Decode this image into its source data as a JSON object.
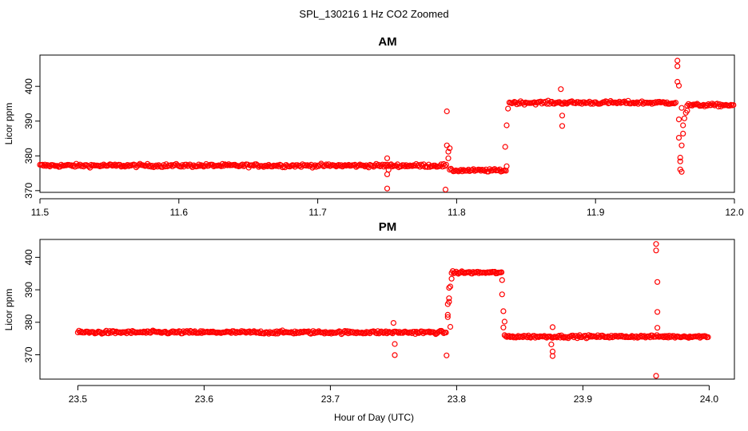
{
  "chart_data": {
    "type": "scatter",
    "title": "SPL_130216  1 Hz CO2 Zoomed",
    "xlabel": "Hour of Day (UTC)",
    "marker_color": "#ff0000",
    "panels": [
      {
        "title": "AM",
        "ylabel": "Licor ppm",
        "xlim": [
          11.5,
          12.0
        ],
        "ylim": [
          369.5,
          409
        ],
        "xticks": [
          11.5,
          11.6,
          11.7,
          11.8,
          11.9,
          12.0
        ],
        "xtick_labels": [
          "11.5",
          "11.6",
          "11.7",
          "11.8",
          "11.9",
          "12.0"
        ],
        "yticks": [
          370,
          380,
          390,
          400
        ],
        "ytick_labels": [
          "370",
          "380",
          "390",
          "400"
        ],
        "segments": [
          {
            "x_start": 11.5,
            "x_end": 11.793,
            "level": 377.2,
            "noise": 0.8
          },
          {
            "x_start": 11.795,
            "x_end": 11.836,
            "level": 375.8,
            "noise": 0.7
          },
          {
            "x_start": 11.838,
            "x_end": 11.958,
            "level": 395.3,
            "noise": 0.8
          },
          {
            "x_start": 11.966,
            "x_end": 12.0,
            "level": 394.6,
            "noise": 0.7
          }
        ],
        "points": [
          [
            11.75,
            370.6
          ],
          [
            11.75,
            374.7
          ],
          [
            11.75,
            379.3
          ],
          [
            11.751,
            376.0
          ],
          [
            11.792,
            370.3
          ],
          [
            11.793,
            392.8
          ],
          [
            11.793,
            383.0
          ],
          [
            11.794,
            381.2
          ],
          [
            11.794,
            379.3
          ],
          [
            11.795,
            382.2
          ],
          [
            11.835,
            382.6
          ],
          [
            11.836,
            388.8
          ],
          [
            11.836,
            377.0
          ],
          [
            11.837,
            393.6
          ],
          [
            11.875,
            399.2
          ],
          [
            11.876,
            391.6
          ],
          [
            11.876,
            388.6
          ],
          [
            11.959,
            407.4
          ],
          [
            11.959,
            405.8
          ],
          [
            11.959,
            401.3
          ],
          [
            11.96,
            400.2
          ],
          [
            11.96,
            390.5
          ],
          [
            11.96,
            385.2
          ],
          [
            11.961,
            379.5
          ],
          [
            11.961,
            378.4
          ],
          [
            11.961,
            376.1
          ],
          [
            11.962,
            375.4
          ],
          [
            11.962,
            383.0
          ],
          [
            11.963,
            386.4
          ],
          [
            11.963,
            388.8
          ],
          [
            11.964,
            390.8
          ],
          [
            11.965,
            392.4
          ],
          [
            11.966,
            393.0
          ],
          [
            11.962,
            393.8
          ]
        ]
      },
      {
        "title": "PM",
        "ylabel": "Licor ppm",
        "xlim": [
          23.47,
          24.02
        ],
        "ylim": [
          362.5,
          405.5
        ],
        "xticks": [
          23.5,
          23.6,
          23.7,
          23.8,
          23.9,
          24.0
        ],
        "xtick_labels": [
          "23.5",
          "23.6",
          "23.7",
          "23.8",
          "23.9",
          "24.0"
        ],
        "yticks": [
          370,
          380,
          390,
          400
        ],
        "ytick_labels": [
          "370",
          "380",
          "390",
          "400"
        ],
        "segments": [
          {
            "x_start": 23.5,
            "x_end": 23.792,
            "level": 376.9,
            "noise": 0.8
          },
          {
            "x_start": 23.796,
            "x_end": 23.836,
            "level": 395.3,
            "noise": 0.7
          },
          {
            "x_start": 23.838,
            "x_end": 24.0,
            "level": 375.6,
            "noise": 0.7
          }
        ],
        "points": [
          [
            23.75,
            379.8
          ],
          [
            23.751,
            373.3
          ],
          [
            23.751,
            369.9
          ],
          [
            23.792,
            369.8
          ],
          [
            23.793,
            382.3
          ],
          [
            23.793,
            381.6
          ],
          [
            23.793,
            385.6
          ],
          [
            23.794,
            386.3
          ],
          [
            23.794,
            387.4
          ],
          [
            23.794,
            390.6
          ],
          [
            23.795,
            391.0
          ],
          [
            23.795,
            378.6
          ],
          [
            23.796,
            393.4
          ],
          [
            23.836,
            393.0
          ],
          [
            23.836,
            388.6
          ],
          [
            23.837,
            383.4
          ],
          [
            23.837,
            378.4
          ],
          [
            23.838,
            380.2
          ],
          [
            23.876,
            378.5
          ],
          [
            23.876,
            371.0
          ],
          [
            23.876,
            369.6
          ],
          [
            23.875,
            373.2
          ],
          [
            23.958,
            363.5
          ],
          [
            23.958,
            404.1
          ],
          [
            23.958,
            402.1
          ],
          [
            23.959,
            392.4
          ],
          [
            23.959,
            383.2
          ],
          [
            23.959,
            378.3
          ]
        ]
      }
    ]
  }
}
